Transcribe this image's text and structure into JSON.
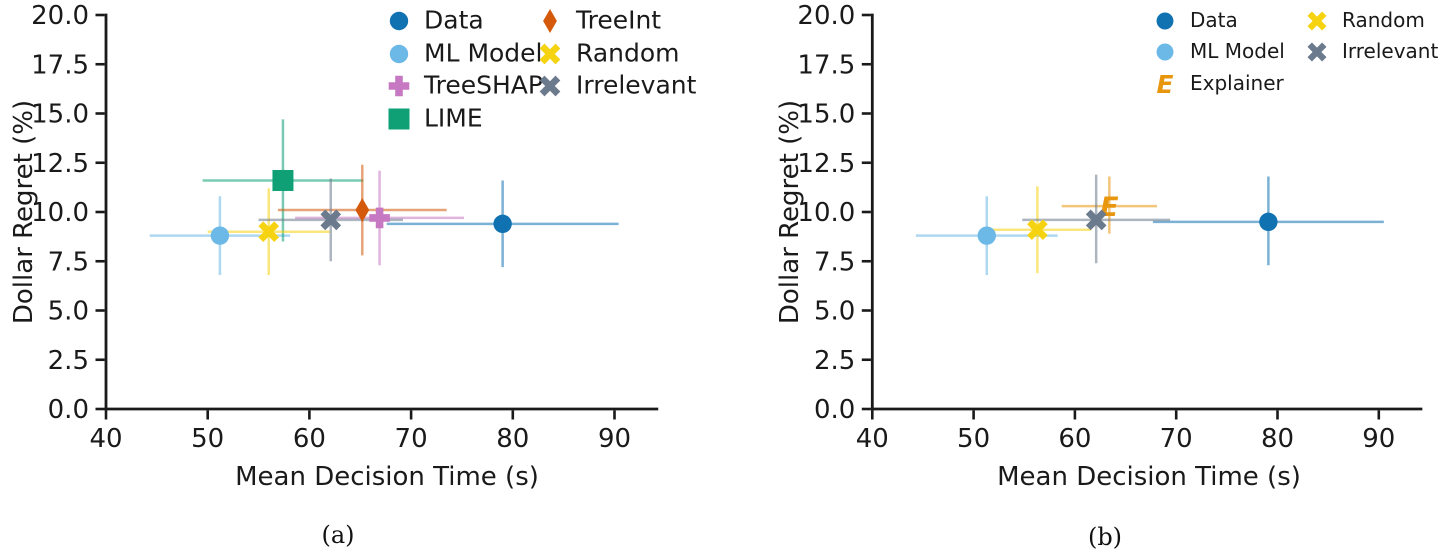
{
  "figure": {
    "background": "#ffffff",
    "captions": {
      "a": "(a)",
      "b": "(b)"
    }
  },
  "colors": {
    "axis": "#1a1a1a",
    "data_blue": "#1172b2",
    "ml_model_blue": "#6cb9e7",
    "treeshap_pink": "#c678c2",
    "lime_green": "#0fa076",
    "treeint_orange": "#d4590b",
    "random_yellow": "#f6d310",
    "irrelevant_gray": "#6b7a8c",
    "explainer_orange": "#e8960e"
  },
  "chart_data": [
    {
      "id": "a",
      "type": "scatter",
      "title": "",
      "xlabel": "Mean Decision Time (s)",
      "ylabel": "Dollar Regret (%)",
      "xlim": [
        40,
        94.3
      ],
      "ylim": [
        0,
        20
      ],
      "xticks": [
        40,
        50,
        60,
        70,
        80,
        90
      ],
      "xticklabels": [
        "40",
        "50",
        "60",
        "70",
        "80",
        "90"
      ],
      "yticks": [
        0,
        2.5,
        5,
        7.5,
        10,
        12.5,
        15,
        17.5,
        20
      ],
      "yticklabels": [
        "0.0",
        "2.5",
        "5.0",
        "7.5",
        "10.0",
        "12.5",
        "15.0",
        "17.5",
        "20.0"
      ],
      "grid": false,
      "legend": {
        "position": "upper right",
        "columns": 2,
        "frame": false
      },
      "series": [
        {
          "name": "Data",
          "marker": "circle",
          "color": "#1172b2",
          "x": 79.0,
          "y": 9.4,
          "x_err": [
            67.6,
            90.4
          ],
          "y_err": [
            7.2,
            11.6
          ]
        },
        {
          "name": "ML Model",
          "marker": "circle",
          "color": "#6cb9e7",
          "x": 51.2,
          "y": 8.8,
          "x_err": [
            44.3,
            58.1
          ],
          "y_err": [
            6.8,
            10.8
          ]
        },
        {
          "name": "TreeSHAP",
          "marker": "plus",
          "color": "#c678c2",
          "x": 66.9,
          "y": 9.7,
          "x_err": [
            58.6,
            75.2
          ],
          "y_err": [
            7.3,
            12.1
          ]
        },
        {
          "name": "LIME",
          "marker": "square",
          "color": "#0fa076",
          "x": 57.4,
          "y": 11.6,
          "x_err": [
            49.5,
            65.3
          ],
          "y_err": [
            8.5,
            14.7
          ]
        },
        {
          "name": "TreeInt",
          "marker": "thin-diamond",
          "color": "#d4590b",
          "x": 65.2,
          "y": 10.1,
          "x_err": [
            56.9,
            73.5
          ],
          "y_err": [
            7.8,
            12.4
          ]
        },
        {
          "name": "Random",
          "marker": "x-bold",
          "color": "#f6d310",
          "x": 56.0,
          "y": 9.0,
          "x_err": [
            50.0,
            62.0
          ],
          "y_err": [
            6.8,
            11.2
          ]
        },
        {
          "name": "Irrelevant",
          "marker": "x-bold",
          "color": "#6b7a8c",
          "x": 62.1,
          "y": 9.6,
          "x_err": [
            55.0,
            69.2
          ],
          "y_err": [
            7.5,
            11.7
          ]
        }
      ]
    },
    {
      "id": "b",
      "type": "scatter",
      "title": "",
      "xlabel": "Mean Decision Time (s)",
      "ylabel": "Dollar Regret (%)",
      "xlim": [
        40,
        94.3
      ],
      "ylim": [
        0,
        20
      ],
      "xticks": [
        40,
        50,
        60,
        70,
        80,
        90
      ],
      "xticklabels": [
        "40",
        "50",
        "60",
        "70",
        "80",
        "90"
      ],
      "yticks": [
        0,
        2.5,
        5,
        7.5,
        10,
        12.5,
        15,
        17.5,
        20
      ],
      "yticklabels": [
        "0.0",
        "2.5",
        "5.0",
        "7.5",
        "10.0",
        "12.5",
        "15.0",
        "17.5",
        "20.0"
      ],
      "grid": false,
      "legend": {
        "position": "upper right",
        "columns": 2,
        "frame": false
      },
      "series": [
        {
          "name": "Data",
          "marker": "circle",
          "color": "#1172b2",
          "x": 79.1,
          "y": 9.5,
          "x_err": [
            67.7,
            90.5
          ],
          "y_err": [
            7.3,
            11.8
          ]
        },
        {
          "name": "ML Model",
          "marker": "circle",
          "color": "#6cb9e7",
          "x": 51.3,
          "y": 8.8,
          "x_err": [
            44.3,
            58.3
          ],
          "y_err": [
            6.8,
            10.8
          ]
        },
        {
          "name": "Explainer",
          "marker": "letter-E",
          "color": "#e8960e",
          "x": 63.4,
          "y": 10.3,
          "x_err": [
            58.7,
            68.1
          ],
          "y_err": [
            8.9,
            11.8
          ]
        },
        {
          "name": "Random",
          "marker": "x-bold",
          "color": "#f6d310",
          "x": 56.3,
          "y": 9.1,
          "x_err": [
            51.0,
            61.6
          ],
          "y_err": [
            6.9,
            11.3
          ]
        },
        {
          "name": "Irrelevant",
          "marker": "x-bold",
          "color": "#6b7a8c",
          "x": 62.1,
          "y": 9.6,
          "x_err": [
            54.8,
            69.4
          ],
          "y_err": [
            7.4,
            11.9
          ]
        }
      ]
    }
  ]
}
